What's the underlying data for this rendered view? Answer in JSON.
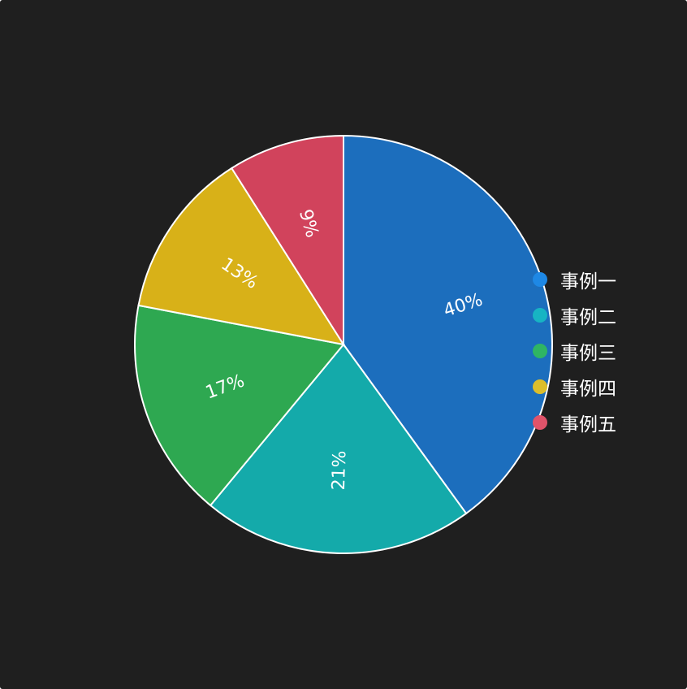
{
  "chart_data": {
    "type": "pie",
    "slices": [
      {
        "name": "事例一",
        "value": 40,
        "label": "40%",
        "color": "#1c6ebd"
      },
      {
        "name": "事例二",
        "value": 21,
        "label": "21%",
        "color": "#14aaaa"
      },
      {
        "name": "事例三",
        "value": 17,
        "label": "17%",
        "color": "#2ea851"
      },
      {
        "name": "事例四",
        "value": 13,
        "label": "13%",
        "color": "#d8b118"
      },
      {
        "name": "事例五",
        "value": 9,
        "label": "9%",
        "color": "#d1435c"
      }
    ],
    "legend": {
      "position": "right",
      "dot_colors": [
        "#1e88e5",
        "#17b4c3",
        "#2fb563",
        "#dcbe2b",
        "#e0536a"
      ]
    },
    "background": "#1f1f1f",
    "slice_border": "#ffffff",
    "label_color": "#ffffff",
    "labels_rotated": true
  }
}
